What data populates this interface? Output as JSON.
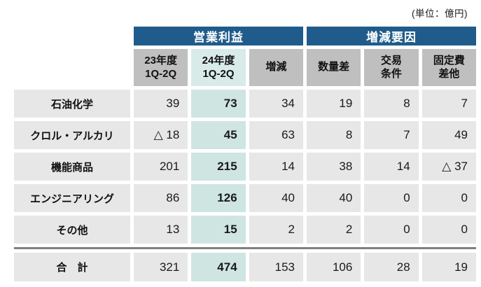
{
  "unit_label": "(単位：億円)",
  "colors": {
    "group_header_navy": "#1f5c8b",
    "subheader_gray": "#bfbfbf",
    "cell_gray": "#e7e7e7",
    "highlight_teal_header": "#d8ebe8",
    "highlight_teal_cell": "#cfe5e2",
    "divider_gray": "#7f7f7f"
  },
  "table": {
    "group_headers": [
      {
        "label": "営業利益"
      },
      {
        "label": "増減要因"
      }
    ],
    "column_headers": [
      "23年度\n1Q-2Q",
      "24年度\n1Q-2Q",
      "増減",
      "数量差",
      "交易\n条件",
      "固定費\n差他"
    ],
    "rows": [
      {
        "label": "石油化学",
        "values": [
          "39",
          "73",
          "34",
          "19",
          "8",
          "7"
        ]
      },
      {
        "label": "クロル・アルカリ",
        "values": [
          "△ 18",
          "45",
          "63",
          "8",
          "7",
          "49"
        ]
      },
      {
        "label": "機能商品",
        "values": [
          "201",
          "215",
          "14",
          "38",
          "14",
          "△ 37"
        ]
      },
      {
        "label": "エンジニアリング",
        "values": [
          "86",
          "126",
          "40",
          "40",
          "0",
          "0"
        ]
      },
      {
        "label": "その他",
        "values": [
          "13",
          "15",
          "2",
          "2",
          "0",
          "0"
        ]
      }
    ],
    "total": {
      "label": "合　計",
      "values": [
        "321",
        "474",
        "153",
        "106",
        "28",
        "19"
      ]
    }
  }
}
